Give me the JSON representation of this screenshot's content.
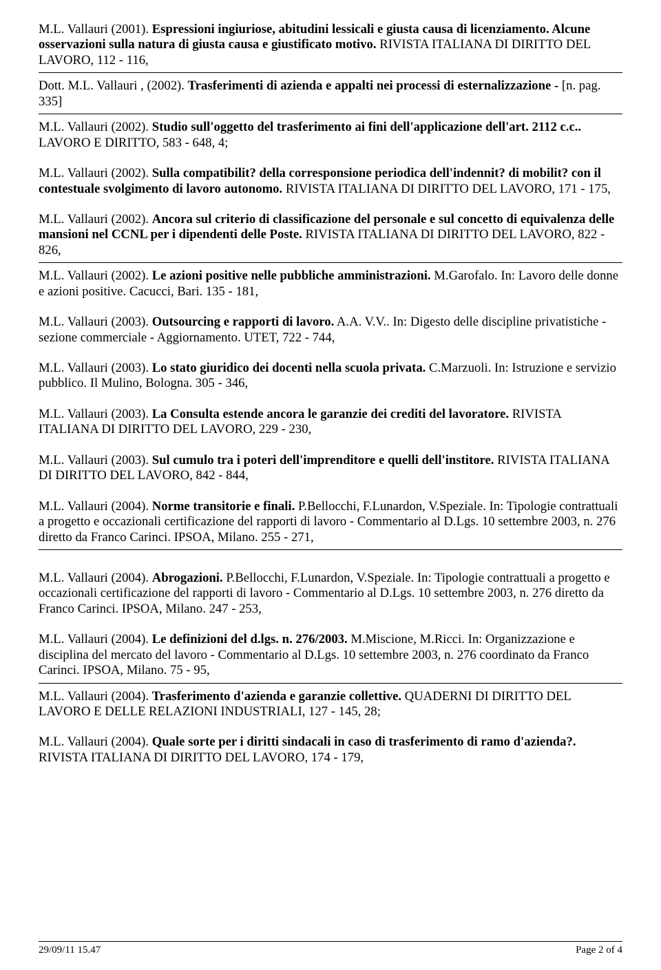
{
  "entries": [
    {
      "text_before": "M.L. Vallauri   (2001).    ",
      "bold": "Espressioni ingiuriose, abitudini lessicali e giusta causa di licenziamento.  Alcune osservazioni sulla natura di giusta causa e giustificato motivo.",
      "text_after": "    RIVISTA ITALIANA DI DIRITTO DEL LAVORO,   112 -   116,",
      "has_hr": true
    },
    {
      "text_before": "Dott. M.L. Vallauri ,   (2002).    ",
      "bold": "Trasferimenti di azienda e appalti nei processi di esternalizzazione -",
      "text_after": "    [n. pag. 335]",
      "has_hr": true
    },
    {
      "text_before": "M.L. Vallauri   (2002).    ",
      "bold": "Studio sull'oggetto del trasferimento ai fini dell'applicazione dell'art. 2112 c.c..",
      "text_after": " LAVORO E DIRITTO,   583 -   648,  4;",
      "has_hr": false
    },
    {
      "text_before": "M.L. Vallauri   (2002).    ",
      "bold": "Sulla compatibilit? della corresponsione periodica dell'indennit? di mobilit? con il contestuale svolgimento di lavoro autonomo.",
      "text_after": "    RIVISTA ITALIANA DI DIRITTO DEL LAVORO,   171 -   175,",
      "has_hr": false
    },
    {
      "text_before": "M.L. Vallauri   (2002).    ",
      "bold": "Ancora sul criterio di classificazione del personale e sul concetto di equivalenza delle mansioni nel CCNL per i dipendenti delle Poste.",
      "text_after": "    RIVISTA ITALIANA DI DIRITTO DEL LAVORO,   822 -   826,",
      "has_hr": true
    },
    {
      "text_before": "M.L. Vallauri   (2002).    ",
      "bold": "Le azioni positive nelle pubbliche amministrazioni.",
      "text_after": "    M.Garofalo.    In: Lavoro delle donne e azioni positive.   Cacucci,  Bari.   135 -   181,",
      "has_hr": false
    },
    {
      "text_before": "M.L. Vallauri   (2003).    ",
      "bold": "Outsourcing e rapporti di lavoro.",
      "text_after": "    A.A. V.V..    In: Digesto delle discipline privatistiche - sezione commerciale - Aggiornamento.   UTET,   722 -   744,",
      "has_hr": false
    },
    {
      "text_before": "M.L. Vallauri   (2003).    ",
      "bold": "Lo stato giuridico dei docenti nella scuola privata.",
      "text_after": "    C.Marzuoli.    In: Istruzione e servizio pubblico.   Il Mulino,  Bologna.   305 -   346,",
      "has_hr": false
    },
    {
      "text_before": "M.L. Vallauri   (2003).    ",
      "bold": "La Consulta estende ancora le garanzie dei crediti del lavoratore.",
      "text_after": "    RIVISTA ITALIANA DI DIRITTO DEL LAVORO,   229 -   230,",
      "has_hr": false
    },
    {
      "text_before": "M.L. Vallauri   (2003).    ",
      "bold": "Sul cumulo tra i poteri dell'imprenditore e quelli dell'institore.",
      "text_after": "    RIVISTA ITALIANA DI DIRITTO DEL LAVORO,   842 -   844,",
      "has_hr": false
    },
    {
      "text_before": "M.L. Vallauri   (2004).    ",
      "bold": "Norme transitorie e finali.",
      "text_after": "    P.Bellocchi, F.Lunardon, V.Speziale.    In: Tipologie contrattuali a progetto e occazionali certificazione del rapporti di lavoro - Commentario al D.Lgs. 10 settembre 2003, n. 276 diretto da Franco Carinci.   IPSOA,  Milano.   255 -   271,",
      "has_hr": true,
      "extragap": true
    },
    {
      "text_before": "M.L. Vallauri   (2004).    ",
      "bold": "Abrogazioni.",
      "text_after": "    P.Bellocchi, F.Lunardon, V.Speziale.    In: Tipologie contrattuali a progetto e occazionali certificazione del rapporti di lavoro - Commentario al D.Lgs. 10 settembre 2003, n. 276 diretto da Franco Carinci.   IPSOA,  Milano.   247 -   253,",
      "has_hr": false
    },
    {
      "text_before": "M.L. Vallauri   (2004).    ",
      "bold": "Le definizioni del d.lgs. n. 276/2003.",
      "text_after": "    M.Miscione, M.Ricci.    In: Organizzazione e disciplina del mercato del lavoro - Commentario al D.Lgs. 10 settembre 2003, n. 276 coordinato da Franco Carinci.   IPSOA,  Milano.   75 -   95,",
      "has_hr": true
    },
    {
      "text_before": "M.L. Vallauri   (2004).    ",
      "bold": "Trasferimento d'azienda e garanzie collettive.",
      "text_after": "    QUADERNI DI DIRITTO DEL LAVORO E DELLE RELAZIONI INDUSTRIALI,   127 -   145,  28;",
      "has_hr": false
    },
    {
      "text_before": "M.L. Vallauri   (2004).    ",
      "bold": "Quale sorte per i diritti sindacali in caso di trasferimento di ramo d'azienda?.",
      "text_after": " RIVISTA ITALIANA DI DIRITTO DEL LAVORO,   174 -   179,",
      "has_hr": false
    }
  ],
  "footer": {
    "timestamp": "29/09/11 15.47",
    "page": "Page 2 of 4"
  }
}
